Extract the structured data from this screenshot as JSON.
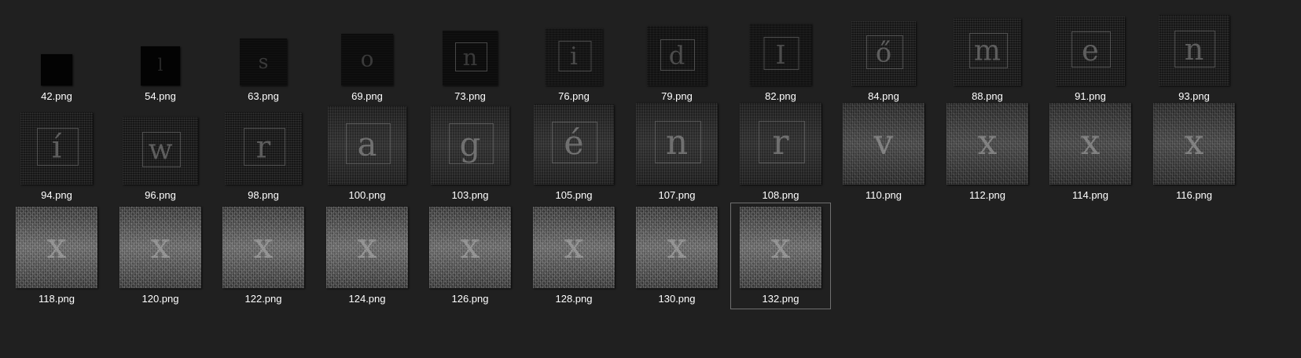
{
  "window": {
    "background": "#202020"
  },
  "items": [
    {
      "name": "42.png",
      "glyph": "",
      "level": 0
    },
    {
      "name": "54.png",
      "glyph": "l",
      "level": 0
    },
    {
      "name": "63.png",
      "glyph": "s",
      "level": 1
    },
    {
      "name": "69.png",
      "glyph": "o",
      "level": 1
    },
    {
      "name": "73.png",
      "glyph": "n",
      "level": 1
    },
    {
      "name": "76.png",
      "glyph": "i",
      "level": 2
    },
    {
      "name": "79.png",
      "glyph": "d",
      "level": 2
    },
    {
      "name": "82.png",
      "glyph": "I",
      "level": 2
    },
    {
      "name": "84.png",
      "glyph": "ő",
      "level": 3
    },
    {
      "name": "88.png",
      "glyph": "m",
      "level": 3
    },
    {
      "name": "91.png",
      "glyph": "e",
      "level": 3
    },
    {
      "name": "93.png",
      "glyph": "n",
      "level": 3
    },
    {
      "name": "94.png",
      "glyph": "í",
      "level": 3
    },
    {
      "name": "96.png",
      "glyph": "w",
      "level": 3
    },
    {
      "name": "98.png",
      "glyph": "r",
      "level": 3
    },
    {
      "name": "100.png",
      "glyph": "a",
      "level": 4
    },
    {
      "name": "103.png",
      "glyph": "g",
      "level": 4
    },
    {
      "name": "105.png",
      "glyph": "é",
      "level": 4
    },
    {
      "name": "107.png",
      "glyph": "n",
      "level": 4
    },
    {
      "name": "108.png",
      "glyph": "r",
      "level": 4
    },
    {
      "name": "110.png",
      "glyph": "v",
      "level": 5
    },
    {
      "name": "112.png",
      "glyph": "x",
      "level": 5
    },
    {
      "name": "114.png",
      "glyph": "x",
      "level": 5
    },
    {
      "name": "116.png",
      "glyph": "x",
      "level": 5
    },
    {
      "name": "118.png",
      "glyph": "x",
      "level": 6
    },
    {
      "name": "120.png",
      "glyph": "x",
      "level": 6
    },
    {
      "name": "122.png",
      "glyph": "x",
      "level": 6
    },
    {
      "name": "124.png",
      "glyph": "x",
      "level": 6
    },
    {
      "name": "126.png",
      "glyph": "x",
      "level": 6
    },
    {
      "name": "128.png",
      "glyph": "x",
      "level": 6
    },
    {
      "name": "130.png",
      "glyph": "x",
      "level": 6
    },
    {
      "name": "132.png",
      "glyph": "x",
      "level": 6
    }
  ],
  "selected_item": "132.png"
}
